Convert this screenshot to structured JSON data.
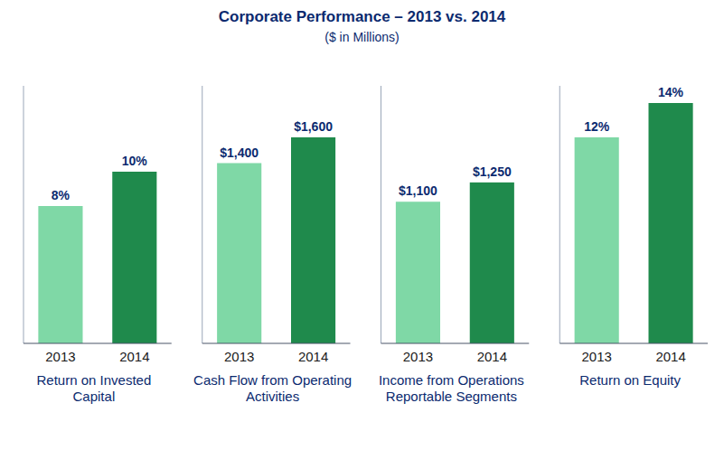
{
  "title": "Corporate Performance – 2013 vs. 2014",
  "subtitle": "($ in Millions)",
  "chart_data": [
    {
      "type": "bar",
      "title": "Return on Invested Capital",
      "categories": [
        "2013",
        "2014"
      ],
      "values": [
        8,
        10
      ],
      "value_labels": [
        "8%",
        "10%"
      ],
      "colors": [
        "#7fd8a6",
        "#1f8a4c"
      ],
      "ylim": [
        0,
        15
      ],
      "data_labels": true,
      "tick_labels": "x",
      "grid": false
    },
    {
      "type": "bar",
      "title": "Cash Flow from Operating Activities",
      "categories": [
        "2013",
        "2014"
      ],
      "values": [
        1400,
        1600
      ],
      "value_labels": [
        "$1,400",
        "$1,600"
      ],
      "colors": [
        "#7fd8a6",
        "#1f8a4c"
      ],
      "ylim": [
        0,
        2000
      ],
      "data_labels": true,
      "tick_labels": "x",
      "grid": false
    },
    {
      "type": "bar",
      "title": "Income from Operations Reportable Segments",
      "categories": [
        "2013",
        "2014"
      ],
      "values": [
        1100,
        1250
      ],
      "value_labels": [
        "$1,100",
        "$1,250"
      ],
      "colors": [
        "#7fd8a6",
        "#1f8a4c"
      ],
      "ylim": [
        0,
        2000
      ],
      "data_labels": true,
      "tick_labels": "x",
      "grid": false
    },
    {
      "type": "bar",
      "title": "Return on Equity",
      "categories": [
        "2013",
        "2014"
      ],
      "values": [
        12,
        14
      ],
      "value_labels": [
        "12%",
        "14%"
      ],
      "colors": [
        "#7fd8a6",
        "#1f8a4c"
      ],
      "ylim": [
        0,
        15
      ],
      "data_labels": true,
      "tick_labels": "x",
      "grid": false
    }
  ]
}
